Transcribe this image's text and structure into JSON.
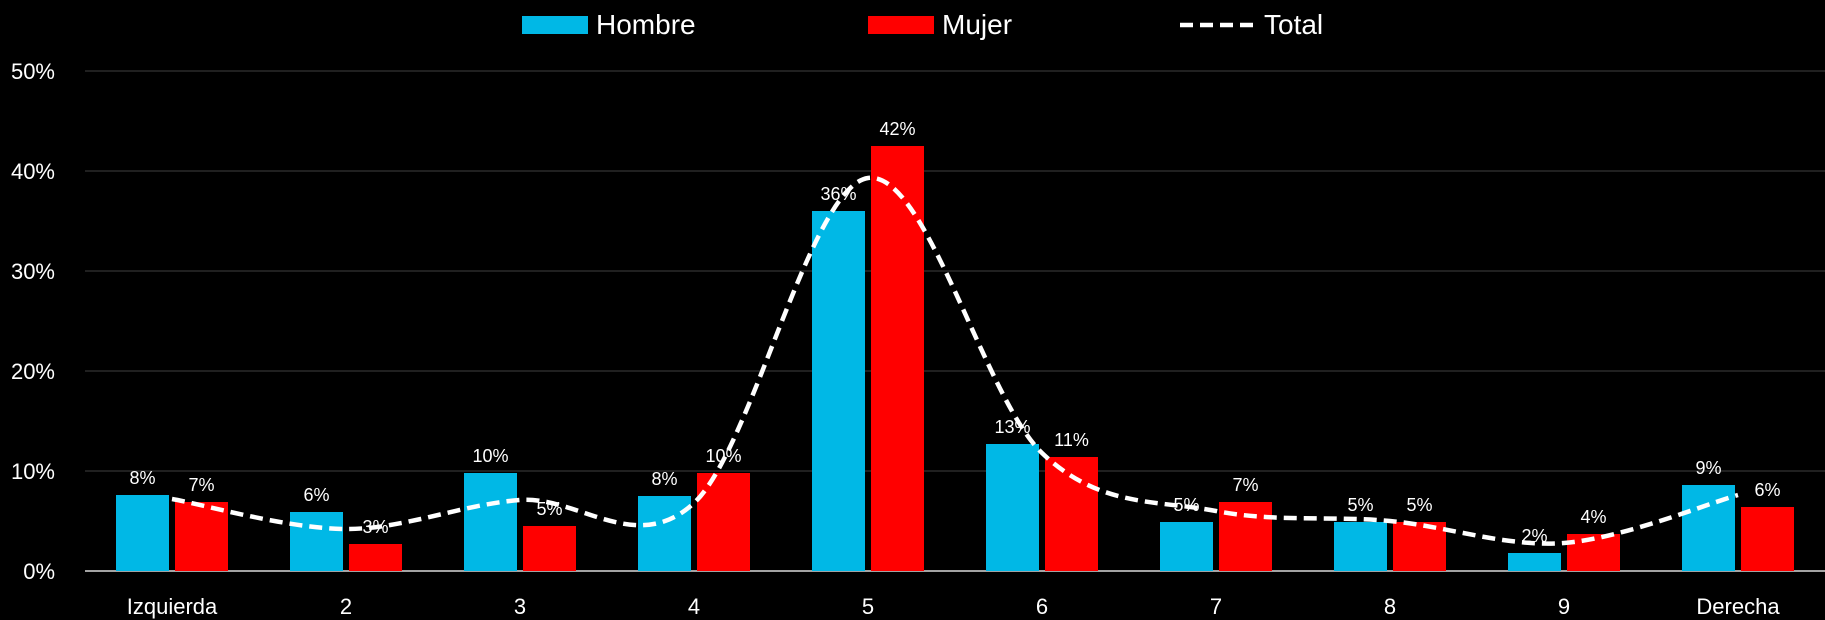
{
  "chart_data": {
    "type": "bar",
    "categories": [
      "Izquierda",
      "2",
      "3",
      "4",
      "5",
      "6",
      "7",
      "8",
      "9",
      "Derecha"
    ],
    "series": [
      {
        "name": "Hombre",
        "type": "bar",
        "color": "#00B8E6",
        "values": [
          7.6,
          5.9,
          9.8,
          7.5,
          36,
          12.7,
          4.9,
          4.9,
          1.8,
          8.6
        ],
        "labels": [
          "8%",
          "6%",
          "10%",
          "8%",
          "36%",
          "13%",
          "5%",
          "5%",
          "2%",
          "9%"
        ]
      },
      {
        "name": "Mujer",
        "type": "bar",
        "color": "#FF0000",
        "values": [
          6.9,
          2.7,
          4.5,
          9.8,
          42.5,
          11.4,
          6.9,
          4.9,
          3.7,
          6.4
        ],
        "labels": [
          "7%",
          "3%",
          "5%",
          "10%",
          "42%",
          "11%",
          "7%",
          "5%",
          "4%",
          "6%"
        ]
      },
      {
        "name": "Total",
        "type": "line",
        "style": "dashed-smooth",
        "color": "#FFFFFF",
        "values": [
          7.2,
          4.2,
          7.1,
          6.8,
          39.3,
          11.8,
          6.0,
          5.0,
          2.8,
          7.6
        ]
      }
    ],
    "ylim": [
      0,
      50
    ],
    "yticks": [
      "0%",
      "10%",
      "20%",
      "30%",
      "40%",
      "50%"
    ],
    "grid": true,
    "legend_position": "top-center",
    "background": "#000000"
  }
}
